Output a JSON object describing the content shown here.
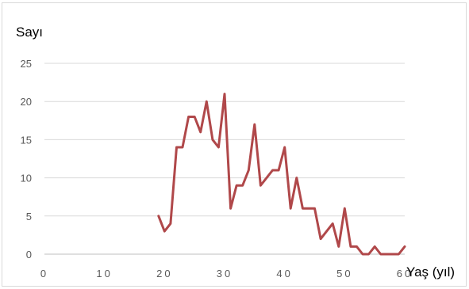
{
  "chart_data": {
    "type": "line",
    "title": "",
    "ylabel": "Sayı",
    "xlabel": "Yaş (yıl)",
    "xlim": [
      0,
      60
    ],
    "ylim": [
      0,
      25
    ],
    "x_ticks": [
      0,
      10,
      20,
      30,
      40,
      50,
      60
    ],
    "y_ticks": [
      0,
      5,
      10,
      15,
      20,
      25
    ],
    "grid": "horizontal",
    "legend": "none",
    "colors": {
      "series": "#b0484a",
      "grid": "#d9d9d9",
      "axis": "#bfbfbf",
      "tick_text": "#595959"
    },
    "series": [
      {
        "x": [
          19,
          20,
          21,
          22,
          23,
          24,
          25,
          26,
          27,
          28,
          29,
          30,
          31,
          32,
          33,
          34,
          35,
          36,
          37,
          38,
          39,
          40,
          41,
          42,
          43,
          44,
          45,
          46,
          47,
          48,
          49,
          50,
          51,
          52,
          53,
          54,
          55,
          56,
          57,
          58,
          59,
          60
        ],
        "values": [
          5,
          3,
          4,
          14,
          14,
          18,
          18,
          16,
          20,
          15,
          14,
          21,
          6,
          9,
          9,
          11,
          17,
          9,
          10,
          11,
          11,
          14,
          6,
          10,
          6,
          6,
          6,
          2,
          3,
          4,
          1,
          6,
          1,
          1,
          0,
          0,
          1,
          0,
          0,
          0,
          0,
          1
        ]
      }
    ]
  }
}
